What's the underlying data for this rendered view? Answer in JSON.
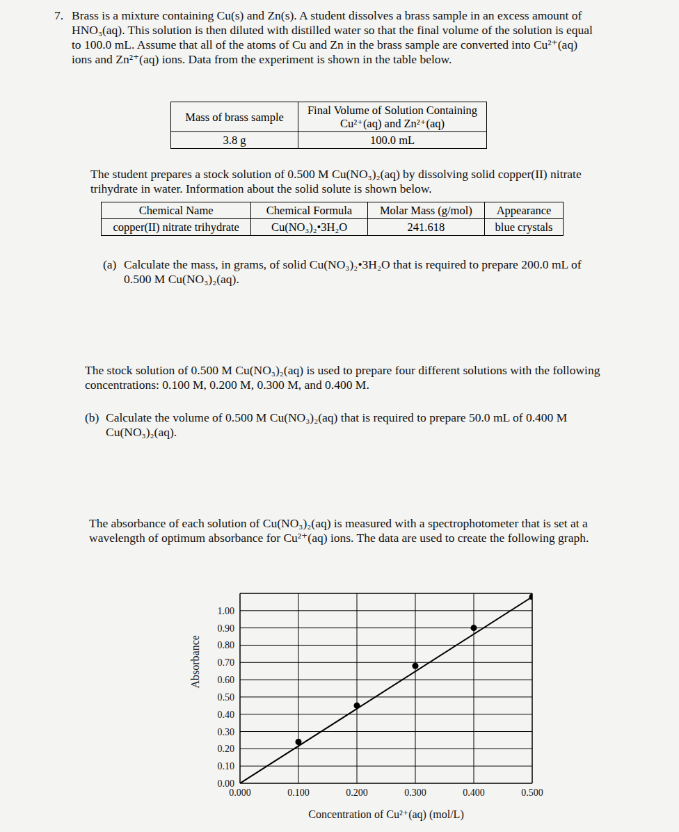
{
  "question": {
    "number": "7.",
    "intro": "Brass is a mixture containing Cu(s) and Zn(s). A student dissolves a brass sample in an excess amount of HNO₃(aq). This solution is then diluted with distilled water so that the final volume of the solution is equal to 100.0 mL. Assume that all of the atoms of Cu and Zn in the brass sample are converted into Cu²⁺(aq) ions and Zn²⁺(aq) ions. Data from the experiment is shown in the table below."
  },
  "table1": {
    "header": [
      "Mass of brass sample",
      "Final Volume of Solution Containing Cu²⁺(aq) and Zn²⁺(aq)"
    ],
    "rows": [
      [
        "3.8 g",
        "100.0 mL"
      ]
    ]
  },
  "stock_text": "The student prepares a stock solution of 0.500 M Cu(NO₃)₂(aq) by dissolving solid copper(II) nitrate trihydrate in water. Information about the solid solute is shown below.",
  "table2": {
    "header": [
      "Chemical Name",
      "Chemical Formula",
      "Molar Mass (g/mol)",
      "Appearance"
    ],
    "rows": [
      [
        "copper(II) nitrate trihydrate",
        "Cu(NO₃)₂•3H₂O",
        "241.618",
        "blue crystals"
      ]
    ]
  },
  "part_a": {
    "label": "(a)",
    "text": "Calculate the mass, in grams, of solid Cu(NO₃)₂•3H₂O that is required to prepare 200.0 mL of 0.500 M Cu(NO₃)₂(aq)."
  },
  "dilution_text": "The stock solution of 0.500 M Cu(NO₃)₂(aq) is used to prepare four different solutions with the following concentrations: 0.100 M, 0.200 M, 0.300 M, and 0.400 M.",
  "part_b": {
    "label": "(b)",
    "text": "Calculate the volume of 0.500 M Cu(NO₃)₂(aq) that is required to prepare 50.0 mL of 0.400 M Cu(NO₃)₂(aq)."
  },
  "graph_text": "The absorbance of each solution of Cu(NO₃)₂(aq) is measured with a spectrophotometer that is set at a wavelength of optimum absorbance for Cu²⁺(aq) ions. The data are used to create the following graph.",
  "chart_data": {
    "type": "scatter",
    "x_label": "Concentration of Cu²⁺(aq) (mol/L)",
    "y_label": "Absorbance",
    "x": [
      0.1,
      0.2,
      0.3,
      0.4,
      0.5
    ],
    "values": [
      0.24,
      0.45,
      0.68,
      0.9,
      1.08
    ],
    "fit_line": {
      "x": [
        0.0,
        0.5
      ],
      "values": [
        0.0,
        1.08
      ]
    },
    "color": "#000000",
    "marker": "circle",
    "xlim": [
      0,
      0.5
    ],
    "xticks": [
      {
        "value": 0,
        "label": "0.000"
      },
      {
        "value": 0.1,
        "label": "0.100"
      },
      {
        "value": 0.2,
        "label": "0.200"
      },
      {
        "value": 0.3,
        "label": "0.300"
      },
      {
        "value": 0.4,
        "label": "0.400"
      },
      {
        "value": 0.5,
        "label": "0.500"
      }
    ],
    "ylim": [
      0,
      1.1
    ],
    "yticks": [
      {
        "value": 0,
        "label": "0.00"
      },
      {
        "value": 0.1,
        "label": "0.10"
      },
      {
        "value": 0.2,
        "label": "0.20"
      },
      {
        "value": 0.3,
        "label": "0.30"
      },
      {
        "value": 0.4,
        "label": "0.40"
      },
      {
        "value": 0.5,
        "label": "0.50"
      },
      {
        "value": 0.6,
        "label": "0.60"
      },
      {
        "value": 0.7,
        "label": "0.70"
      },
      {
        "value": 0.8,
        "label": "0.80"
      },
      {
        "value": 0.9,
        "label": "0.90"
      },
      {
        "value": 1.0,
        "label": "1.00"
      }
    ],
    "grid": true
  }
}
